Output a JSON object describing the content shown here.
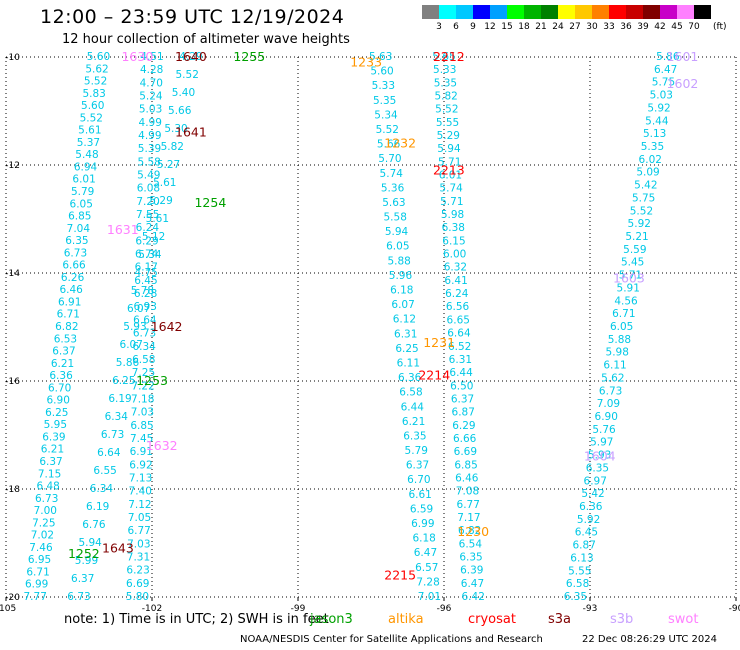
{
  "header": {
    "title": "12:00 – 23:59 UTC 12/19/2024",
    "subtitle": "12 hour collection of altimeter wave heights"
  },
  "legend": {
    "unit": "(ft)",
    "bins": [
      {
        "label": "3",
        "color": "#808080"
      },
      {
        "label": "6",
        "color": "#00ffff"
      },
      {
        "label": "9",
        "color": "#00c8ff"
      },
      {
        "label": "12",
        "color": "#0000ff"
      },
      {
        "label": "15",
        "color": "#00a0ff"
      },
      {
        "label": "18",
        "color": "#00ff00"
      },
      {
        "label": "21",
        "color": "#00b400"
      },
      {
        "label": "24",
        "color": "#008000"
      },
      {
        "label": "27",
        "color": "#ffff00"
      },
      {
        "label": "30",
        "color": "#ffc800"
      },
      {
        "label": "33",
        "color": "#ff8000"
      },
      {
        "label": "36",
        "color": "#ff0000"
      },
      {
        "label": "39",
        "color": "#c80000"
      },
      {
        "label": "42",
        "color": "#800000"
      },
      {
        "label": "45",
        "color": "#c800c8"
      },
      {
        "label": "70",
        "color": "#ff80ff"
      },
      {
        "label": "",
        "color": "#000000"
      }
    ]
  },
  "map": {
    "lon_range": [
      -105,
      -90
    ],
    "lat_range": [
      -20,
      -10
    ],
    "lon_ticks": [
      {
        "value": -105,
        "label": "-105"
      },
      {
        "value": -102,
        "label": "-102"
      },
      {
        "value": -99,
        "label": "-99"
      },
      {
        "value": -96,
        "label": "-96"
      },
      {
        "value": -93,
        "label": "-93"
      },
      {
        "value": -90,
        "label": "-90"
      }
    ],
    "lat_ticks": [
      {
        "value": -10,
        "label": "-10"
      },
      {
        "value": -12,
        "label": "-12"
      },
      {
        "value": -14,
        "label": "-14"
      },
      {
        "value": -16,
        "label": "-16"
      },
      {
        "value": -18,
        "label": "-18"
      },
      {
        "value": -20,
        "label": "-20"
      }
    ]
  },
  "tracks": [
    {
      "sat": "jason3",
      "color": "#00c8e6",
      "start": [
        -103.1,
        -10.0
      ],
      "end": [
        -104.4,
        -20.0
      ],
      "values": [
        "5.60",
        "5.62",
        "5.52",
        "5.83",
        "5.60",
        "5.52",
        "5.61",
        "5.37",
        "5.48",
        "6.94",
        "6.01",
        "5.79",
        "6.05",
        "6.85",
        "7.04",
        "6.35",
        "6.73",
        "6.66",
        "6.26",
        "6.46",
        "6.91",
        "6.71",
        "6.82",
        "6.53",
        "6.37",
        "6.21",
        "6.36",
        "6.70",
        "6.90",
        "6.25",
        "5.95",
        "6.39",
        "6.21",
        "6.37",
        "7.15",
        "6.48",
        "6.73",
        "7.00",
        "7.25",
        "7.02",
        "7.46",
        "6.95",
        "6.71",
        "6.99",
        "7.77"
      ]
    },
    {
      "sat": "jason3",
      "color": "#00c8e6",
      "start": [
        -102.0,
        -10.0
      ],
      "end": [
        -102.3,
        -20.0
      ],
      "values": [
        "4.51",
        "4.28",
        "4.70",
        "5.24",
        "5.03",
        "4.99",
        "4.99",
        "5.39",
        "5.58",
        "5.49",
        "6.08",
        "7.20",
        "7.55",
        "6.24",
        "6.29",
        "6.74",
        "6.17",
        "6.45",
        "6.28",
        "6.93",
        "6.64",
        "6.73",
        "6.34",
        "6.58",
        "7.25",
        "7.22",
        "7.18",
        "7.03",
        "6.85",
        "7.45",
        "6.91",
        "6.92",
        "7.13",
        "7.40",
        "7.12",
        "7.05",
        "6.77",
        "7.03",
        "7.31",
        "6.23",
        "6.69",
        "5.80"
      ]
    },
    {
      "sat": "jason3",
      "color": "#00c8e6",
      "start": [
        -101.2,
        -10.0
      ],
      "end": [
        -103.5,
        -20.0
      ],
      "values": [
        "4.29",
        "5.52",
        "5.40",
        "5.66",
        "5.30",
        "5.82",
        "5.27",
        "5.61",
        "5.29",
        "5.61",
        "5.12",
        "5.34",
        "4.75",
        "5.78",
        "6.07",
        "5.93",
        "6.07",
        "5.86",
        "6.25",
        "6.19",
        "6.34",
        "6.73",
        "6.64",
        "6.55",
        "6.34",
        "6.19",
        "6.76",
        "5.94",
        "5.99",
        "6.37",
        "6.73"
      ]
    },
    {
      "sat": "jason3",
      "color": "#00c8e6",
      "start": [
        -97.3,
        -10.0
      ],
      "end": [
        -96.3,
        -20.0
      ],
      "values": [
        "5.63",
        "5.60",
        "5.33",
        "5.35",
        "5.34",
        "5.52",
        "5.66",
        "5.70",
        "5.74",
        "5.36",
        "5.63",
        "5.58",
        "5.94",
        "6.05",
        "5.88",
        "5.96",
        "6.18",
        "6.07",
        "6.12",
        "6.31",
        "6.25",
        "6.11",
        "6.36",
        "6.58",
        "6.44",
        "6.21",
        "6.35",
        "5.79",
        "6.37",
        "6.70",
        "6.61",
        "6.59",
        "6.99",
        "6.18",
        "6.47",
        "6.57",
        "7.28",
        "7.01"
      ]
    },
    {
      "sat": "jason3",
      "color": "#00c8e6",
      "start": [
        -96.0,
        -10.0
      ],
      "end": [
        -95.4,
        -20.0
      ],
      "values": [
        "5.65",
        "5.33",
        "5.35",
        "5.82",
        "5.52",
        "5.55",
        "5.29",
        "5.94",
        "5.71",
        "6.01",
        "5.74",
        "5.71",
        "5.98",
        "6.38",
        "6.15",
        "6.00",
        "6.32",
        "6.41",
        "6.24",
        "6.56",
        "6.65",
        "6.64",
        "6.52",
        "6.31",
        "6.44",
        "6.50",
        "6.37",
        "6.87",
        "6.29",
        "6.66",
        "6.69",
        "6.85",
        "6.46",
        "7.08",
        "6.77",
        "7.17",
        "6.82",
        "6.54",
        "6.35",
        "6.39",
        "6.47",
        "6.42"
      ]
    },
    {
      "sat": "jason3",
      "color": "#00c8e6",
      "start": [
        -91.4,
        -10.0
      ],
      "end": [
        -93.3,
        -20.0
      ],
      "values": [
        "5.86",
        "6.47",
        "5.75",
        "5.03",
        "5.92",
        "5.44",
        "5.13",
        "5.35",
        "6.02",
        "5.09",
        "5.42",
        "5.75",
        "5.52",
        "5.92",
        "5.21",
        "5.59",
        "5.45",
        "5.71",
        "5.91",
        "4.56",
        "6.71",
        "6.05",
        "5.88",
        "5.98",
        "6.11",
        "5.62",
        "6.73",
        "7.09",
        "6.90",
        "5.76",
        "5.97",
        "5.93",
        "6.35",
        "6.97",
        "5.42",
        "6.36",
        "5.92",
        "6.45",
        "6.87",
        "6.13",
        "5.55",
        "6.58",
        "6.35"
      ]
    }
  ],
  "time_labels": [
    {
      "text": "1630",
      "color": "#ff80ff",
      "lon": -102.3,
      "lat": -10.0
    },
    {
      "text": "1640",
      "color": "#800000",
      "lon": -101.2,
      "lat": -10.0
    },
    {
      "text": "1255",
      "color": "#00a000",
      "lon": -100.0,
      "lat": -10.0
    },
    {
      "text": "1641",
      "color": "#800000",
      "lon": -101.2,
      "lat": -11.4
    },
    {
      "text": "1254",
      "color": "#00a000",
      "lon": -100.8,
      "lat": -12.7
    },
    {
      "text": "1631",
      "color": "#ff80ff",
      "lon": -102.6,
      "lat": -13.2
    },
    {
      "text": "1642",
      "color": "#800000",
      "lon": -101.7,
      "lat": -15.0
    },
    {
      "text": "1253",
      "color": "#00a000",
      "lon": -102.0,
      "lat": -16.0
    },
    {
      "text": "1632",
      "color": "#ff80ff",
      "lon": -101.8,
      "lat": -17.2
    },
    {
      "text": "1643",
      "color": "#800000",
      "lon": -102.7,
      "lat": -19.1
    },
    {
      "text": "1252",
      "color": "#00a000",
      "lon": -103.4,
      "lat": -19.2
    },
    {
      "text": "1233",
      "color": "#ff9600",
      "lon": -97.6,
      "lat": -10.1
    },
    {
      "text": "2212",
      "color": "#ff0000",
      "lon": -95.9,
      "lat": -10.0
    },
    {
      "text": "1232",
      "color": "#ff9600",
      "lon": -96.9,
      "lat": -11.6
    },
    {
      "text": "2213",
      "color": "#ff0000",
      "lon": -95.9,
      "lat": -12.1
    },
    {
      "text": "1231",
      "color": "#ff9600",
      "lon": -96.1,
      "lat": -15.3
    },
    {
      "text": "2214",
      "color": "#ff0000",
      "lon": -96.2,
      "lat": -15.9
    },
    {
      "text": "1230",
      "color": "#ff9600",
      "lon": -95.4,
      "lat": -18.8
    },
    {
      "text": "2215",
      "color": "#ff0000",
      "lon": -96.9,
      "lat": -19.6
    },
    {
      "text": "1601",
      "color": "#c8a0ff",
      "lon": -91.1,
      "lat": -10.0
    },
    {
      "text": "1602",
      "color": "#c8a0ff",
      "lon": -91.1,
      "lat": -10.5
    },
    {
      "text": "1603",
      "color": "#c8a0ff",
      "lon": -92.2,
      "lat": -14.1
    },
    {
      "text": "1604",
      "color": "#c8a0ff",
      "lon": -92.8,
      "lat": -17.4
    }
  ],
  "footer": {
    "note": "note:  1) Time is in UTC;  2) SWH is in feet",
    "satellites": [
      {
        "name": "jason3",
        "color": "#00a000"
      },
      {
        "name": "altika",
        "color": "#ff9600"
      },
      {
        "name": "cryosat",
        "color": "#ff0000"
      },
      {
        "name": "s3a",
        "color": "#800000"
      },
      {
        "name": "s3b",
        "color": "#c8a0ff"
      },
      {
        "name": "swot",
        "color": "#ff80ff"
      }
    ],
    "credit": "NOAA/NESDIS Center for Satellite Applications and Research",
    "timestamp": "22 Dec 08:26:29 UTC 2024"
  }
}
